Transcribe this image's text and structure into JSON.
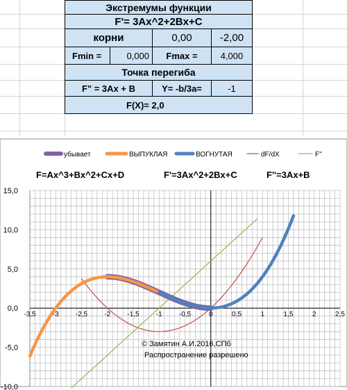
{
  "table": {
    "title": "Экстремумы функции",
    "formula": "F'= 3Ax^2+2Bx+C",
    "roots_label": "корни",
    "root1": "0,00",
    "root2": "-2,00",
    "fmin_label": "Fmin =",
    "fmin_value": "0,000",
    "fmax_label": "Fmax =",
    "fmax_value": "4,000",
    "inflection_title": "Точка перегиба",
    "second_derivative": "F\" = 3Ax + B",
    "y_formula": "Y= -b/3a=",
    "y_value": "-1",
    "fx_label": "F(X)=",
    "fx_value": "2,0"
  },
  "colors": {
    "cell_fill": "#cfe3f5",
    "decreasing": "#8064a2",
    "convex": "#f79646",
    "concave": "#4f81bd",
    "dfdx": "#c0504d",
    "f2": "#9bbb59"
  },
  "chart_data": {
    "type": "line",
    "legend": [
      "убывает",
      "ВЫПУКЛАЯ",
      "ВОГНУТАЯ",
      "dF/dX",
      "F''"
    ],
    "legend_position": "top",
    "formulas": [
      "F=Ax^3+Bx^2+Cx+D",
      "F'=3Ax^2+2Bx+C",
      "F''=3Ax+B"
    ],
    "xlim": [
      -3.5,
      2.5
    ],
    "ylim": [
      -10.0,
      15.0
    ],
    "x_ticks": [
      "-3,5",
      "-3",
      "-2,5",
      "-2",
      "-1,5",
      "-1",
      "-0,5",
      "0",
      "0,5",
      "1",
      "1,5",
      "2",
      "2,5"
    ],
    "y_ticks": [
      "15,0",
      "10,0",
      "5,0",
      "0,0",
      "-5,0",
      "-10,0"
    ],
    "grid": true,
    "series": [
      {
        "name": "убывает",
        "x": [
          -2.0,
          -1.6,
          -1.2,
          -0.8,
          -0.4,
          0.0
        ],
        "y": [
          4.0,
          3.52,
          2.43,
          1.15,
          0.29,
          0.0
        ]
      },
      {
        "name": "ВЫПУКЛАЯ",
        "x": [
          -3.5,
          -3.0,
          -2.5,
          -2.0,
          -1.5,
          -1.0
        ],
        "y": [
          -6.13,
          0.0,
          3.13,
          4.0,
          3.38,
          2.0
        ]
      },
      {
        "name": "ВОГНУТАЯ",
        "x": [
          -1.0,
          -0.5,
          0.0,
          0.5,
          1.0,
          1.6
        ],
        "y": [
          2.0,
          0.63,
          0.0,
          0.88,
          4.0,
          11.8
        ]
      },
      {
        "name": "dF/dX",
        "x": [
          -2.5,
          -2.0,
          -1.5,
          -1.0,
          -0.5,
          0.0,
          0.5,
          1.0
        ],
        "y": [
          3.75,
          0.0,
          -2.25,
          -3.0,
          -2.25,
          0.0,
          3.75,
          9.0
        ]
      },
      {
        "name": "F''",
        "x": [
          -2.7,
          0.9
        ],
        "y": [
          -10.2,
          11.4
        ]
      }
    ]
  },
  "watermark": {
    "line1": "© Замятин А.И.2016,СПб",
    "line2": "Распространение разрешено"
  }
}
